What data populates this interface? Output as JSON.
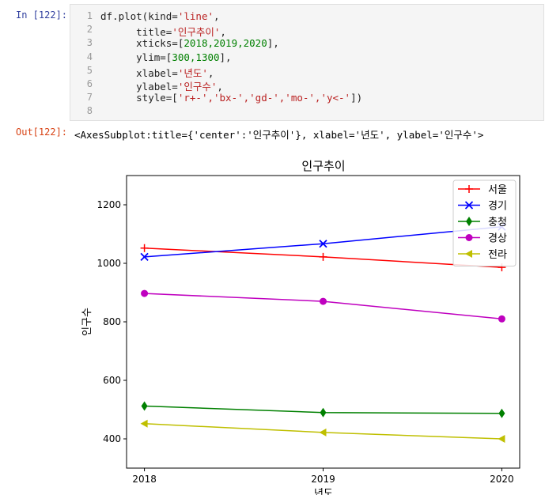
{
  "input_prompt": "In [122]:",
  "output_prompt": "Out[122]:",
  "code": {
    "line_numbers": [
      "1",
      "2",
      "3",
      "4",
      "5",
      "6",
      "7",
      "8"
    ],
    "lines": [
      {
        "indent": "",
        "pre": "df.plot(kind=",
        "str": "'line'",
        "post": ","
      },
      {
        "indent": "      ",
        "pre": "title=",
        "str": "'인구추이'",
        "post": ","
      },
      {
        "indent": "      ",
        "pre": "xticks=[",
        "num": "2018,2019,2020",
        "post": "],"
      },
      {
        "indent": "      ",
        "pre": "ylim=[",
        "num": "300,1300",
        "post": "],"
      },
      {
        "indent": "      ",
        "pre": "xlabel=",
        "str": "'년도'",
        "post": ","
      },
      {
        "indent": "      ",
        "pre": "ylabel=",
        "str": "'인구수'",
        "post": ","
      },
      {
        "indent": "      ",
        "pre": "style=[",
        "str": "'r+-','bx-','gd-','mo-','y<-'",
        "post": "])"
      },
      {
        "indent": "",
        "pre": ""
      }
    ]
  },
  "output_text": "<AxesSubplot:title={'center':'인구추이'}, xlabel='년도', ylabel='인구수'>",
  "chart_data": {
    "type": "line",
    "title": "인구추이",
    "xlabel": "년도",
    "ylabel": "인구수",
    "x": [
      2018,
      2019,
      2020
    ],
    "xticks": [
      "2018",
      "2019",
      "2020"
    ],
    "yticks": [
      400,
      600,
      800,
      1000,
      1200
    ],
    "ylim": [
      300,
      1300
    ],
    "legend_position": "top-right",
    "series": [
      {
        "name": "서울",
        "values": [
          1052,
          1022,
          986
        ],
        "color": "#ff0000",
        "marker": "plus"
      },
      {
        "name": "경기",
        "values": [
          1022,
          1067,
          1125
        ],
        "color": "#0000ff",
        "marker": "x"
      },
      {
        "name": "충청",
        "values": [
          512,
          490,
          487
        ],
        "color": "#008000",
        "marker": "diamond"
      },
      {
        "name": "경상",
        "values": [
          897,
          870,
          810
        ],
        "color": "#bf00bf",
        "marker": "circle"
      },
      {
        "name": "전라",
        "values": [
          452,
          422,
          400
        ],
        "color": "#bfbf00",
        "marker": "triangle-left"
      }
    ]
  }
}
